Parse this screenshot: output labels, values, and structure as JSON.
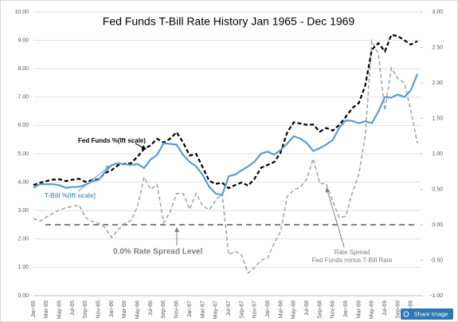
{
  "chart_data": {
    "type": "line",
    "title": "Fed Funds T-Bill Rate History Jan 1965 - Dec 1969",
    "categories": [
      "Jan-65",
      null,
      "Mar-65",
      null,
      "May-65",
      null,
      "Jul-65",
      null,
      "Sep-65",
      null,
      "Nov-65",
      null,
      "Jan-66",
      null,
      "Mar-66",
      null,
      "May-66",
      null,
      "Jul-66",
      null,
      "Sep-66",
      null,
      "Nov-66",
      null,
      "Jan-67",
      null,
      "Mar-67",
      null,
      "May-67",
      null,
      "Jul-67",
      null,
      "Sep-67",
      null,
      "Nov-67",
      null,
      "Jan-68",
      null,
      "Mar-68",
      null,
      "May-68",
      null,
      "Jul-68",
      null,
      "Sep-68",
      null,
      "Nov-68",
      null,
      "Jan-69",
      null,
      "Mar-69",
      null,
      "May-69",
      null,
      "Jul-69",
      null,
      "Sep-69",
      null,
      "Nov-69",
      null
    ],
    "series": [
      {
        "name": "Fed Funds %(lft scale)",
        "color": "#000000",
        "dash": true,
        "values": [
          3.9,
          3.98,
          4.04,
          4.09,
          4.1,
          4.04,
          4.09,
          4.12,
          4.01,
          4.08,
          4.1,
          4.32,
          4.42,
          4.6,
          4.65,
          4.67,
          4.9,
          5.17,
          5.3,
          5.53,
          5.4,
          5.53,
          5.76,
          5.4,
          4.94,
          5.0,
          4.53,
          4.05,
          3.94,
          3.98,
          3.79,
          3.9,
          3.99,
          3.88,
          4.13,
          4.51,
          4.61,
          4.71,
          5.05,
          5.76,
          6.11,
          6.07,
          6.02,
          6.03,
          5.78,
          5.91,
          5.82,
          6.02,
          6.3,
          6.61,
          6.79,
          7.41,
          8.67,
          8.9,
          8.61,
          9.19,
          9.15,
          9.0,
          8.85,
          8.97
        ]
      },
      {
        "name": "T-Bill %(lft scale)",
        "color": "#5b9bd5",
        "dash": false,
        "values": [
          3.81,
          3.93,
          3.93,
          3.93,
          3.89,
          3.8,
          3.83,
          3.84,
          3.91,
          4.03,
          4.08,
          4.36,
          4.6,
          4.67,
          4.63,
          4.61,
          4.64,
          4.5,
          4.8,
          4.96,
          5.37,
          5.35,
          5.32,
          4.96,
          4.72,
          4.56,
          4.26,
          3.84,
          3.6,
          3.54,
          4.21,
          4.27,
          4.42,
          4.56,
          4.73,
          5.01,
          5.08,
          4.97,
          5.14,
          5.36,
          5.62,
          5.54,
          5.38,
          5.1,
          5.2,
          5.33,
          5.49,
          5.92,
          6.18,
          6.16,
          6.08,
          6.15,
          6.08,
          6.49,
          7.0,
          6.98,
          7.09,
          7.0,
          7.24,
          7.82
        ]
      },
      {
        "name": "Rate Spread",
        "color": "#a6a6a6",
        "dash": true,
        "axis": "y2",
        "values": [
          0.09,
          0.05,
          0.11,
          0.16,
          0.21,
          0.24,
          0.26,
          0.28,
          0.1,
          0.05,
          0.02,
          -0.04,
          -0.18,
          -0.07,
          0.02,
          0.06,
          0.26,
          0.67,
          0.5,
          0.57,
          0.03,
          0.18,
          0.44,
          0.44,
          0.22,
          0.44,
          0.27,
          0.21,
          0.34,
          0.44,
          -0.42,
          -0.37,
          -0.43,
          -0.68,
          -0.6,
          -0.5,
          -0.47,
          -0.26,
          -0.09,
          0.4,
          0.49,
          0.53,
          0.64,
          0.93,
          0.58,
          0.58,
          0.33,
          0.1,
          0.12,
          0.45,
          0.71,
          1.26,
          2.59,
          2.41,
          1.61,
          2.21,
          2.06,
          2.0,
          1.61,
          1.15
        ]
      }
    ],
    "subtitle_note": "Fed Funds minus T-Bill Rate",
    "reference_line": {
      "value": 0,
      "axis": "y2",
      "label": "0.0% Rate Spread Level",
      "color": "#7f7f7f"
    },
    "ylim": [
      0,
      10
    ],
    "yticks": [
      {
        "value": 0,
        "label": "0.00"
      },
      {
        "value": 1,
        "label": "1.00"
      },
      {
        "value": 2,
        "label": "2.00"
      },
      {
        "value": 3,
        "label": "3.00"
      },
      {
        "value": 4,
        "label": "4.00"
      },
      {
        "value": 5,
        "label": "5.00"
      },
      {
        "value": 6,
        "label": "6.00"
      },
      {
        "value": 7,
        "label": "7.00"
      },
      {
        "value": 8,
        "label": "8.00"
      },
      {
        "value": 9,
        "label": "9.00"
      },
      {
        "value": 10,
        "label": "10.00"
      }
    ],
    "y2lim": [
      -1,
      3
    ],
    "y2ticks": [
      {
        "value": -1,
        "label": "-1.00"
      },
      {
        "value": -0.5,
        "label": "-0.50"
      },
      {
        "value": 0,
        "label": "0.00"
      },
      {
        "value": 0.5,
        "label": "0.50"
      },
      {
        "value": 1,
        "label": "1.00"
      },
      {
        "value": 1.5,
        "label": "1.50"
      },
      {
        "value": 2,
        "label": "2.00"
      },
      {
        "value": 2.5,
        "label": "2.50"
      },
      {
        "value": 3,
        "label": "3.00"
      }
    ],
    "grid": true,
    "share_button": "Share Image"
  }
}
